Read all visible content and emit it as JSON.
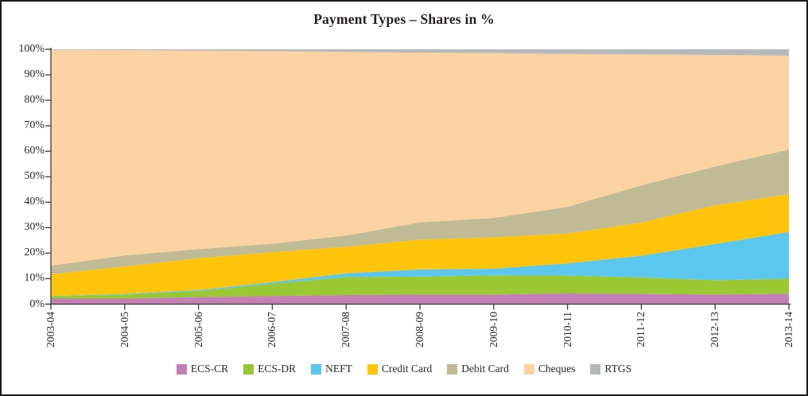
{
  "chart_data": {
    "type": "area",
    "stacked": true,
    "title": "Payment Types – Shares in %",
    "xlabel": "",
    "ylabel": "",
    "ylim": [
      0,
      100
    ],
    "grid": false,
    "legend_position": "bottom",
    "y_ticks": [
      "0%",
      "10%",
      "20%",
      "30%",
      "40%",
      "50%",
      "60%",
      "70%",
      "80%",
      "90%",
      "100%"
    ],
    "categories": [
      "2003-04",
      "2004-05",
      "2005-06",
      "2006-07",
      "2007-08",
      "2008-09",
      "2009-10",
      "2010-11",
      "2011-12",
      "2012-13",
      "2013-14"
    ],
    "series": [
      {
        "name": "ECS-CR",
        "color": "#c480b4",
        "values": [
          2.2,
          2.2,
          2.8,
          3.2,
          3.6,
          3.8,
          3.8,
          4.2,
          4.0,
          3.8,
          4.1
        ]
      },
      {
        "name": "ECS-DR",
        "color": "#99c832",
        "values": [
          0.9,
          1.5,
          2.3,
          4.8,
          7.0,
          7.0,
          7.5,
          7.0,
          6.5,
          5.6,
          5.9
        ]
      },
      {
        "name": "NEFT",
        "color": "#5bc6ee",
        "values": [
          0.1,
          0.3,
          0.4,
          0.6,
          1.5,
          2.8,
          2.6,
          4.8,
          8.5,
          14.2,
          18.3
        ]
      },
      {
        "name": "Credit Card",
        "color": "#fec40a",
        "values": [
          8.5,
          10.8,
          12.5,
          11.8,
          10.4,
          11.7,
          12.3,
          11.7,
          13.0,
          15.2,
          14.8
        ]
      },
      {
        "name": "Debit Card",
        "color": "#c1bb95",
        "values": [
          3.4,
          4.3,
          3.6,
          3.3,
          4.4,
          6.8,
          7.6,
          10.5,
          14.6,
          15.2,
          17.6
        ]
      },
      {
        "name": "Cheques",
        "color": "#fbd2a2",
        "values": [
          84.7,
          80.6,
          77.9,
          75.6,
          72.1,
          66.6,
          64.7,
          60.0,
          51.4,
          43.8,
          36.8
        ]
      },
      {
        "name": "RTGS",
        "color": "#b5b9bc",
        "values": [
          0.2,
          0.3,
          0.5,
          0.7,
          1.0,
          1.3,
          1.5,
          1.8,
          2.0,
          2.2,
          2.5
        ]
      }
    ],
    "axis_color": "#3b3b3b"
  }
}
